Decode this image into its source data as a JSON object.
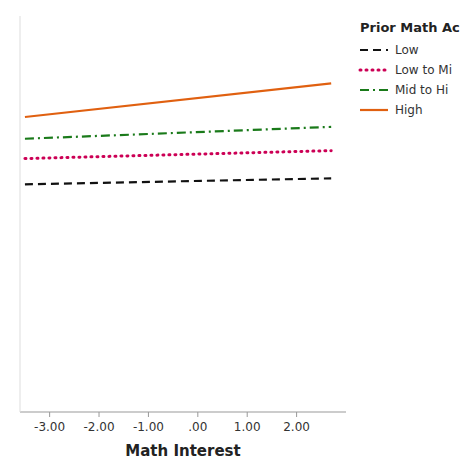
{
  "chart_data": {
    "type": "line",
    "xlabel": "Math Interest",
    "xlim": [
      -3.6,
      3.0
    ],
    "ylim": [
      0.0,
      1.0
    ],
    "xticks": [
      {
        "value": -3.0,
        "label": "-3.00"
      },
      {
        "value": -2.0,
        "label": "-2.00"
      },
      {
        "value": -1.0,
        "label": "-1.00"
      },
      {
        "value": 0.0,
        "label": ".00"
      },
      {
        "value": 1.0,
        "label": "1.00"
      },
      {
        "value": 2.0,
        "label": "2.00"
      }
    ],
    "x": [
      -3.5,
      2.7
    ],
    "series": [
      {
        "name": "Low",
        "color": "#111111",
        "line_style": "dashed",
        "values": [
          0.575,
          0.59
        ]
      },
      {
        "name": "Low to Mi",
        "color": "#cc0055",
        "line_style": "dotted",
        "values": [
          0.64,
          0.66
        ]
      },
      {
        "name": "Mid to Hi",
        "color": "#1a7a1a",
        "line_style": "dashdot",
        "values": [
          0.69,
          0.72
        ]
      },
      {
        "name": "High",
        "color": "#e06010",
        "line_style": "solid",
        "values": [
          0.745,
          0.83
        ]
      }
    ],
    "legend_title": "Prior Math Ac",
    "legend": "upper right",
    "grid": false,
    "tick_labels": "x"
  }
}
